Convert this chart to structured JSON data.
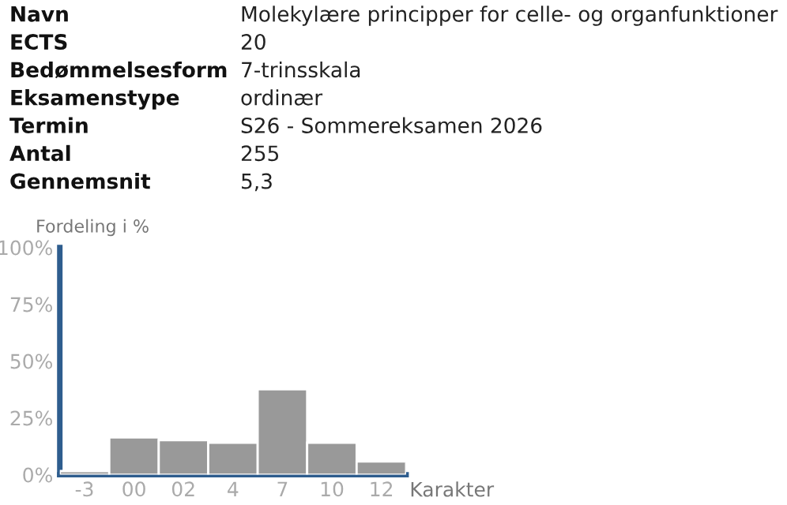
{
  "chart_data": [
    {
      "type": "other",
      "annotations": [
        "Navn",
        "Molekylære principper for celle- og organfunktioner",
        "ECTS",
        "20",
        "Bedømmelsesform",
        "7-trinsskala",
        "Eksamenstype",
        "ordinær",
        "Termin",
        "S26 - Sommereksamen 2026",
        "Antal",
        "255",
        "Gennemsnit",
        "5,3"
      ]
    },
    {
      "type": "bar",
      "ylabel": "Fordeling i %",
      "xlabel": "Karakter",
      "categories": [
        "-3",
        "00",
        "02",
        "4",
        "7",
        "10",
        "12"
      ],
      "values": [
        1.6,
        16.4,
        15.2,
        14.1,
        37.6,
        14.1,
        5.8
      ],
      "color": "#999999",
      "ylim": [
        0,
        100
      ],
      "yticks": [
        {
          "value": 0,
          "label": "0%"
        },
        {
          "value": 25,
          "label": "25%"
        },
        {
          "value": 50,
          "label": "50%"
        },
        {
          "value": 75,
          "label": "75%"
        },
        {
          "value": 100,
          "label": "100%"
        }
      ],
      "grid": false,
      "legend": false
    }
  ]
}
